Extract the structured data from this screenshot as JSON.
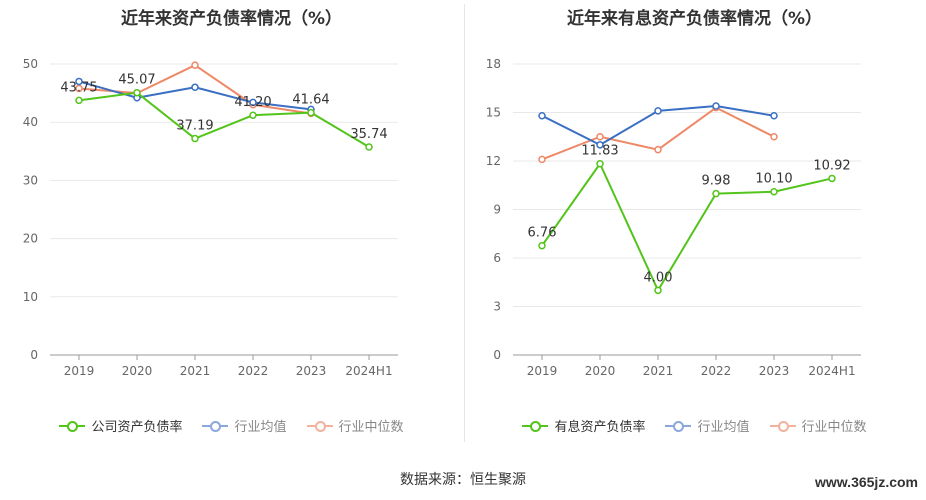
{
  "chart_data": [
    {
      "type": "line",
      "title": "近年来资产负债率情况（%）",
      "categories": [
        "2019",
        "2020",
        "2021",
        "2022",
        "2023",
        "2024H1"
      ],
      "ylim": [
        0,
        50
      ],
      "yticks": [
        0,
        10,
        20,
        30,
        40,
        50
      ],
      "grid": true,
      "legend_position": "bottom",
      "series": [
        {
          "name": "公司资产负债率",
          "color": "#52c41a",
          "values": [
            43.75,
            45.07,
            37.19,
            41.2,
            41.64,
            35.74
          ],
          "labels": [
            "43.75",
            "45.07",
            "37.19",
            "41.20",
            "41.64",
            "35.74"
          ]
        },
        {
          "name": "行业均值",
          "color": "#3a6fc4",
          "values": [
            47.0,
            44.2,
            46.0,
            43.4,
            42.2,
            null
          ]
        },
        {
          "name": "行业中位数",
          "color": "#ee8866",
          "values": [
            45.8,
            45.0,
            49.8,
            43.0,
            41.5,
            null
          ]
        }
      ]
    },
    {
      "type": "line",
      "title": "近年来有息资产负债率情况（%）",
      "categories": [
        "2019",
        "2020",
        "2021",
        "2022",
        "2023",
        "2024H1"
      ],
      "ylim": [
        0,
        18
      ],
      "yticks": [
        0,
        3,
        6,
        9,
        12,
        15,
        18
      ],
      "grid": true,
      "legend_position": "bottom",
      "series": [
        {
          "name": "有息资产负债率",
          "color": "#52c41a",
          "values": [
            6.76,
            11.83,
            4.0,
            9.98,
            10.1,
            10.92
          ],
          "labels": [
            "6.76",
            "11.83",
            "4.00",
            "9.98",
            "10.10",
            "10.92"
          ]
        },
        {
          "name": "行业均值",
          "color": "#3a6fc4",
          "values": [
            14.8,
            13.0,
            15.1,
            15.4,
            14.8,
            null
          ]
        },
        {
          "name": "行业中位数",
          "color": "#ee8866",
          "values": [
            12.1,
            13.5,
            12.7,
            15.3,
            13.5,
            null
          ]
        }
      ]
    }
  ],
  "footer": {
    "source": "数据来源：恒生聚源",
    "watermark": "www.365jz.com"
  }
}
